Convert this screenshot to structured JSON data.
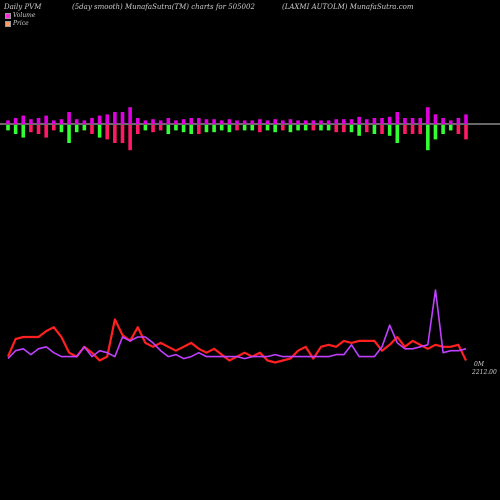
{
  "header": {
    "left": "Daily PVM",
    "center": "(5day smooth) MunafaSutra(TM) charts for 505002",
    "right": "(LAXMI AUTOLM) MunafaSutra.com"
  },
  "legend": {
    "volume_label": "Volume",
    "volume_color": "#ff2bd9",
    "price_label": "Price",
    "price_color": "#ff9966"
  },
  "chart_data": {
    "type": "bar",
    "volume_bars": {
      "magnitudes": [
        0.3,
        0.5,
        0.7,
        0.4,
        0.5,
        0.7,
        0.3,
        0.4,
        1.0,
        0.4,
        0.3,
        0.5,
        0.7,
        0.8,
        1.0,
        1.0,
        1.4,
        0.5,
        0.3,
        0.4,
        0.3,
        0.5,
        0.3,
        0.4,
        0.5,
        0.5,
        0.4,
        0.4,
        0.3,
        0.4,
        0.3,
        0.3,
        0.3,
        0.4,
        0.3,
        0.4,
        0.3,
        0.4,
        0.3,
        0.3,
        0.3,
        0.3,
        0.3,
        0.4,
        0.4,
        0.4,
        0.6,
        0.4,
        0.5,
        0.5,
        0.6,
        1.0,
        0.5,
        0.5,
        0.5,
        1.4,
        0.8,
        0.5,
        0.3,
        0.5,
        0.8
      ],
      "direction": [
        "up",
        "up",
        "up",
        "down",
        "down",
        "down",
        "down",
        "up",
        "up",
        "up",
        "up",
        "down",
        "up",
        "down",
        "down",
        "down",
        "down",
        "down",
        "up",
        "down",
        "down",
        "up",
        "up",
        "up",
        "up",
        "down",
        "up",
        "up",
        "up",
        "up",
        "down",
        "up",
        "up",
        "down",
        "up",
        "up",
        "down",
        "up",
        "up",
        "up",
        "down",
        "up",
        "up",
        "down",
        "down",
        "up",
        "up",
        "down",
        "up",
        "down",
        "up",
        "up",
        "down",
        "down",
        "down",
        "up",
        "up",
        "up",
        "up",
        "down",
        "down"
      ],
      "color_up": "#33ff33",
      "color_down": "#ff1a66",
      "color_magenta": "#e000e0"
    },
    "volume_line_series": {
      "name": "Volume",
      "values": [
        0.28,
        0.36,
        0.38,
        0.32,
        0.38,
        0.4,
        0.34,
        0.3,
        0.3,
        0.3,
        0.4,
        0.3,
        0.36,
        0.34,
        0.3,
        0.5,
        0.46,
        0.5,
        0.5,
        0.44,
        0.36,
        0.3,
        0.32,
        0.28,
        0.3,
        0.34,
        0.3,
        0.3,
        0.3,
        0.3,
        0.3,
        0.28,
        0.3,
        0.3,
        0.3,
        0.32,
        0.3,
        0.3,
        0.3,
        0.3,
        0.3,
        0.3,
        0.3,
        0.32,
        0.32,
        0.42,
        0.3,
        0.3,
        0.3,
        0.4,
        0.62,
        0.44,
        0.38,
        0.38,
        0.4,
        0.42,
        0.98,
        0.34,
        0.36,
        0.36,
        0.38
      ]
    },
    "price_series": {
      "name": "Price",
      "values": [
        0.3,
        0.48,
        0.5,
        0.5,
        0.5,
        0.56,
        0.6,
        0.5,
        0.34,
        0.3,
        0.4,
        0.34,
        0.26,
        0.3,
        0.68,
        0.52,
        0.46,
        0.6,
        0.44,
        0.4,
        0.44,
        0.4,
        0.36,
        0.4,
        0.44,
        0.38,
        0.34,
        0.38,
        0.32,
        0.26,
        0.3,
        0.34,
        0.3,
        0.34,
        0.26,
        0.24,
        0.26,
        0.28,
        0.36,
        0.4,
        0.28,
        0.4,
        0.42,
        0.4,
        0.46,
        0.44,
        0.46,
        0.46,
        0.46,
        0.36,
        0.42,
        0.5,
        0.4,
        0.46,
        0.42,
        0.38,
        0.42,
        0.4,
        0.4,
        0.42,
        0.26
      ]
    },
    "ylabels": [
      "0M",
      "2212.00"
    ]
  }
}
